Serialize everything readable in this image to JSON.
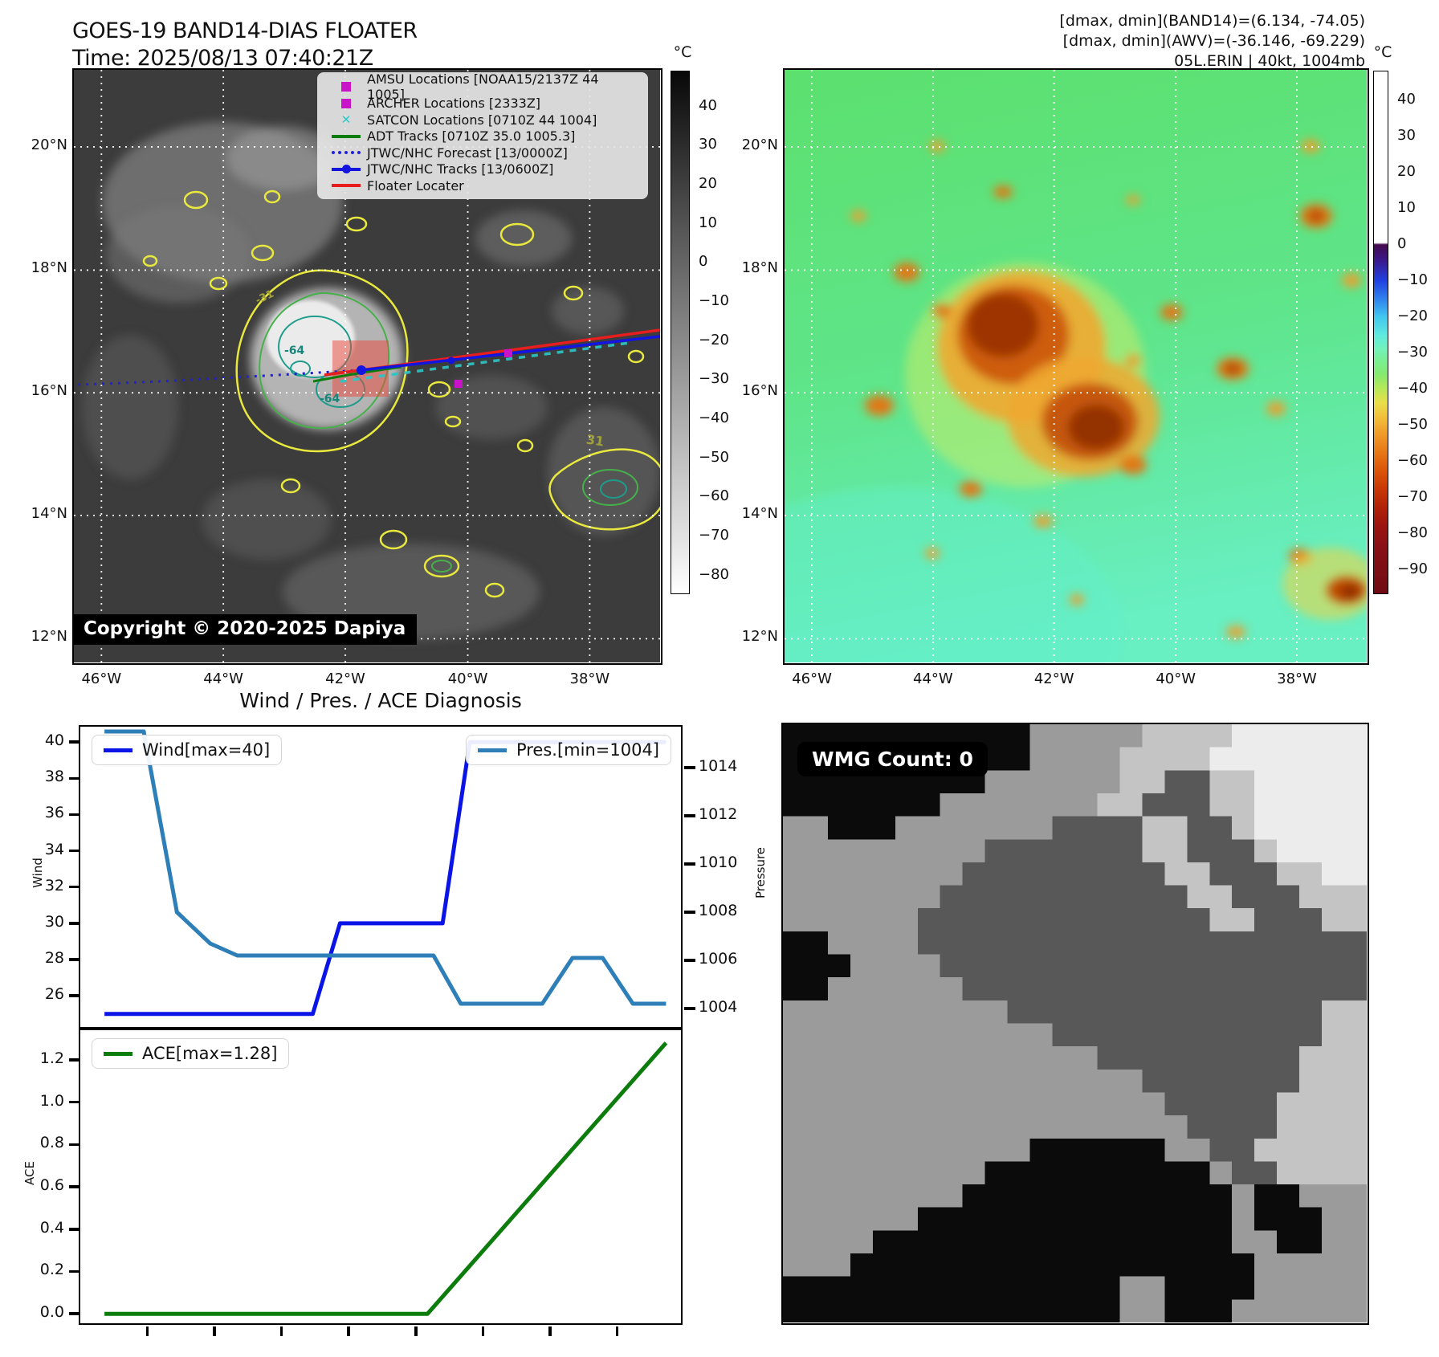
{
  "header": {
    "title_line1": "GOES-19 BAND14-DIAS FLOATER",
    "title_line2": "Time: 2025/08/13 07:40:21Z",
    "info_line1": "[dmax, dmin](BAND14)=(6.134, -74.05)",
    "info_line2": "[dmax, dmin](AWV)=(-36.146, -69.229)",
    "info_line3": "05L.ERIN | 40kt, 1004mb"
  },
  "left_panel": {
    "legend_items": [
      {
        "label": "AMSU Locations [NOAA15/2137Z 44 1005]",
        "marker": "square",
        "color": "#c913c9"
      },
      {
        "label": "ARCHER Locations [2333Z]",
        "marker": "square",
        "color": "#c913c9"
      },
      {
        "label": "SATCON Locations [0710Z 44 1004]",
        "marker": "x",
        "color": "#2bc7c7"
      },
      {
        "label": "ADT Tracks [0710Z 35.0 1005.3]",
        "marker": "line",
        "color": "#0c7c0c"
      },
      {
        "label": "JTWC/NHC Forecast [13/0000Z]",
        "marker": "dotted",
        "color": "#2020e0"
      },
      {
        "label": "JTWC/NHC Tracks [13/0600Z]",
        "marker": "line-dot",
        "color": "#1414e0"
      },
      {
        "label": "Floater Locater",
        "marker": "line",
        "color": "#e81e1e"
      }
    ],
    "lat_labels": [
      "20°N",
      "18°N",
      "16°N",
      "14°N",
      "12°N"
    ],
    "lon_labels": [
      "46°W",
      "44°W",
      "42°W",
      "40°W",
      "38°W"
    ],
    "copyright": "Copyright © 2020-2025 Dapiya",
    "contour_labels": [
      "-64",
      "-64",
      "-31",
      "31"
    ],
    "colorbar": {
      "unit": "°C",
      "ticks": [
        "40",
        "30",
        "20",
        "10",
        "0",
        "−10",
        "−20",
        "−30",
        "−40",
        "−50",
        "−60",
        "−70",
        "−80"
      ],
      "range": [
        49,
        -85
      ]
    }
  },
  "right_panel": {
    "lat_labels": [
      "20°N",
      "18°N",
      "16°N",
      "14°N",
      "12°N"
    ],
    "lon_labels": [
      "46°W",
      "44°W",
      "42°W",
      "40°W",
      "38°W"
    ],
    "colorbar": {
      "unit": "°C",
      "ticks": [
        "40",
        "30",
        "20",
        "10",
        "0",
        "−10",
        "−20",
        "−30",
        "−40",
        "−50",
        "−60",
        "−70",
        "−80",
        "−90"
      ],
      "range": [
        48,
        -97
      ]
    }
  },
  "chart_data": [
    {
      "type": "line",
      "title": "Wind / Pres. / ACE Diagnosis",
      "x_mode": "fraction_of_width",
      "series": [
        {
          "name": "Wind[max=40]",
          "color": "#0a14e6",
          "axis": "left",
          "points": [
            [
              0.04,
              25
            ],
            [
              0.385,
              25
            ],
            [
              0.43,
              30
            ],
            [
              0.6,
              30
            ],
            [
              0.645,
              40
            ],
            [
              0.97,
              40
            ]
          ]
        },
        {
          "name": "Pres.[min=1004]",
          "color": "#2e7fb8",
          "axis": "right",
          "points": [
            [
              0.04,
              1015.5
            ],
            [
              0.105,
              1015.5
            ],
            [
              0.16,
              1008.0
            ],
            [
              0.215,
              1006.7
            ],
            [
              0.26,
              1006.2
            ],
            [
              0.585,
              1006.2
            ],
            [
              0.63,
              1004.2
            ],
            [
              0.765,
              1004.2
            ],
            [
              0.815,
              1006.1
            ],
            [
              0.865,
              1006.1
            ],
            [
              0.915,
              1004.2
            ],
            [
              0.97,
              1004.2
            ]
          ]
        }
      ],
      "left_axis": {
        "label": "Wind",
        "ticks": [
          "40",
          "38",
          "36",
          "34",
          "32",
          "30",
          "28",
          "26"
        ],
        "range": [
          24.1,
          40.85
        ]
      },
      "right_axis": {
        "label": "Pressure",
        "ticks": [
          "1014",
          "1012",
          "1010",
          "1008",
          "1006",
          "1004"
        ],
        "range": [
          1003.1,
          1015.7
        ]
      },
      "grid": false,
      "legend_position": "wind top-left, pressure top-right"
    },
    {
      "type": "line",
      "series": [
        {
          "name": "ACE[max=1.28]",
          "color": "#0c7c0c",
          "axis": "left",
          "points": [
            [
              0.04,
              0.0
            ],
            [
              0.575,
              0.0
            ],
            [
              0.97,
              1.28
            ]
          ]
        }
      ],
      "left_axis": {
        "label": "ACE",
        "ticks": [
          "1.2",
          "1.0",
          "0.8",
          "0.6",
          "0.4",
          "0.2",
          "0.0"
        ],
        "range": [
          -0.06,
          1.34
        ]
      },
      "grid": false,
      "legend_position": "top-left"
    }
  ],
  "wmg_panel": {
    "label": "WMG Count: 0",
    "palette": {
      "k": "#0b0b0b",
      "d": "#585858",
      "m": "#9b9b9b",
      "l": "#c4c4c4",
      "w": "#ececec"
    },
    "grid": [
      "kkkkkkkkkkkmmmmmllllwwwwww",
      "kkkkkkkkkkkmmmmllllwwwwwww",
      "kkkkkkkkkmmmmmmllddllwwwww",
      "kkkkkkkmmmmmmmlldddllwwwww",
      "mmkkkmmmmmmmddddllddlwwwww",
      "mmmmmmmmmdddddddlldddlwwww",
      "mmmmmmmmdddddddddlldddllww",
      "mmmmmmmdddddddddddlldddlll",
      "mmmmmmdddddddddddddlldddll",
      "kkmmmmdddddddddddddddddddd",
      "kkkmmmmddddddddddddddddddd",
      "kkmmmmmmdddddddddddddddddd",
      "mmmmmmmmmmddddddddddddddll",
      "mmmmmmmmmmmmddddddddddddll",
      "mmmmmmmmmmmmmmdddddddddlll",
      "mmmmmmmmmmmmmmmmdddddddlll",
      "mmmmmmmmmmmmmmmmmdddddllll",
      "mmmmmmmmmmmmmmmmmmddddllll",
      "mmmmmmmmmmmkkkkkkmmddlllll",
      "mmmmmmmmmkkkkkkkkkkmddllll",
      "mmmmmmmmkkkkkkkkkkkkmkkmmm",
      "mmmmmmkkkkkkkkkkkkkkmkkkmm",
      "mmmmkkkkkkkkkkkkkkkkmmkkmm",
      "mmmkkkkkkkkkkkkkkkkkkmmmmm",
      "kkkkkkkkkkkkkkkmmkkkkmmmmm",
      "kkkkkkkkkkkkkkkmmkkkmmmmmm"
    ]
  }
}
